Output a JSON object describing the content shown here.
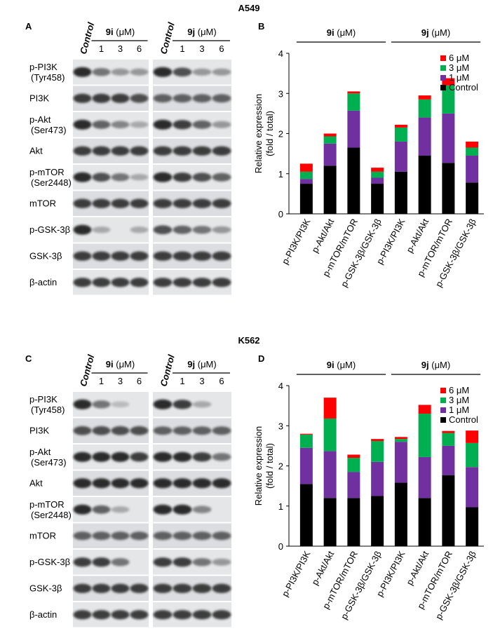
{
  "figure": {
    "panels": [
      {
        "cell_line": "A549",
        "blot_letter": "A",
        "chart_letter": "B",
        "blots": {
          "control": "Control",
          "groups": [
            {
              "name": "9i",
              "unit": "(μM)",
              "doses": [
                1,
                3,
                6
              ]
            },
            {
              "name": "9j",
              "unit": "(μM)",
              "doses": [
                1,
                3,
                6
              ]
            }
          ],
          "rows": [
            {
              "label": "p-PI3K",
              "site": "(Tyr458)"
            },
            {
              "label": "PI3K"
            },
            {
              "label": "p-Akt",
              "site": "(Ser473)"
            },
            {
              "label": "Akt"
            },
            {
              "label": "p-mTOR",
              "site": "(Ser2448)"
            },
            {
              "label": "mTOR"
            },
            {
              "label": "p-GSK-3β"
            },
            {
              "label": "GSK-3β"
            },
            {
              "label": "β-actin"
            }
          ]
        }
      },
      {
        "cell_line": "K562",
        "blot_letter": "C",
        "chart_letter": "D",
        "blots": {
          "control": "Control",
          "groups": [
            {
              "name": "9i",
              "unit": "(μM)",
              "doses": [
                1,
                3,
                6
              ]
            },
            {
              "name": "9j",
              "unit": "(μM)",
              "doses": [
                1,
                3,
                6
              ]
            }
          ],
          "rows": [
            {
              "label": "p-PI3K",
              "site": "(Tyr458)"
            },
            {
              "label": "PI3K"
            },
            {
              "label": "p-Akt",
              "site": "(Ser473)"
            },
            {
              "label": "Akt"
            },
            {
              "label": "p-mTOR",
              "site": "(Ser2448)"
            },
            {
              "label": "mTOR"
            },
            {
              "label": "p-GSK-3β"
            },
            {
              "label": "GSK-3β"
            },
            {
              "label": "β-actin"
            }
          ]
        }
      }
    ]
  },
  "chart_data": [
    {
      "type": "stacked_bar",
      "ylabel": [
        "Relative expression",
        "(fold / total)"
      ],
      "groups": [
        {
          "name": "9i",
          "unit": "(μM)"
        },
        {
          "name": "9j",
          "unit": "(μM)"
        }
      ],
      "categories": [
        "p-PI3K/PI3K",
        "p-Akt/Akt",
        "p-mTOR/mTOR",
        "p-GSK-3β/GSK-3β",
        "p-PI3K/PI3K",
        "p-Akt/Akt",
        "p-mTOR/mTOR",
        "p-GSK-3β/GSK-3β"
      ],
      "series": [
        {
          "name": "Control",
          "color": "#000000",
          "values": [
            0.75,
            1.2,
            1.65,
            0.75,
            1.05,
            1.45,
            1.27,
            0.78
          ]
        },
        {
          "name": "1 μM",
          "color": "#7030a0",
          "values": [
            0.12,
            0.55,
            0.92,
            0.15,
            0.75,
            0.95,
            1.23,
            0.67
          ]
        },
        {
          "name": "3 μM",
          "color": "#00b050",
          "values": [
            0.18,
            0.18,
            0.43,
            0.15,
            0.35,
            0.45,
            0.7,
            0.2
          ]
        },
        {
          "name": "6 μM",
          "color": "#ff0000",
          "values": [
            0.2,
            0.07,
            0.05,
            0.1,
            0.07,
            0.1,
            0.18,
            0.15
          ]
        }
      ],
      "ylim": [
        0,
        4
      ],
      "yticks": [
        0,
        1,
        2,
        3,
        4
      ],
      "legend": "upper right"
    },
    {
      "type": "stacked_bar",
      "ylabel": [
        "Relative expression",
        "(fold / total)"
      ],
      "groups": [
        {
          "name": "9i",
          "unit": "(μM)"
        },
        {
          "name": "9j",
          "unit": "(μM)"
        }
      ],
      "categories": [
        "p-PI3K/PI3K",
        "p-Akt/Akt",
        "p-mTOR/mTOR",
        "p-GSK-3β/GSK-3β",
        "p-PI3K/PI3K",
        "p-Akt/Akt",
        "p-mTOR/mTOR",
        "p-GSK-3β/GSK-3β"
      ],
      "series": [
        {
          "name": "Control",
          "color": "#000000",
          "values": [
            1.55,
            1.2,
            1.2,
            1.25,
            1.58,
            1.2,
            1.77,
            0.97
          ]
        },
        {
          "name": "1 μM",
          "color": "#7030a0",
          "values": [
            0.9,
            1.17,
            0.65,
            0.85,
            1.02,
            1.02,
            0.73,
            1.0
          ]
        },
        {
          "name": "3 μM",
          "color": "#00b050",
          "values": [
            0.33,
            0.81,
            0.35,
            0.52,
            0.07,
            1.08,
            0.32,
            0.6
          ]
        },
        {
          "name": "6 μM",
          "color": "#ff0000",
          "values": [
            0.02,
            0.52,
            0.08,
            0.05,
            0.05,
            0.22,
            0.05,
            0.31
          ]
        }
      ],
      "ylim": [
        0,
        4
      ],
      "yticks": [
        0,
        1,
        2,
        3,
        4
      ],
      "legend": "upper right"
    }
  ]
}
